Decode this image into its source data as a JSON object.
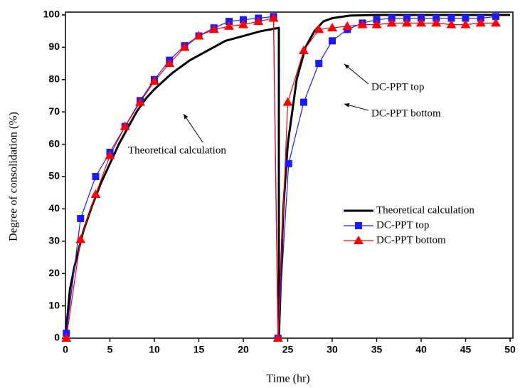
{
  "chart_data": {
    "type": "line",
    "x_label": "Time (hr)",
    "y_label": "Degree of consolidation (%)",
    "xlim": [
      0,
      50
    ],
    "xticks": [
      0,
      5,
      10,
      15,
      20,
      25,
      30,
      35,
      40,
      45,
      50
    ],
    "ylim": [
      0,
      100
    ],
    "yticks": [
      0,
      10,
      20,
      30,
      40,
      50,
      60,
      70,
      80,
      90,
      100
    ],
    "legend": "right",
    "annotations": [
      "Theoretical calculation",
      "DC-PPT top",
      "DC-PPT bottom"
    ],
    "series": [
      {
        "name": "Theoretical calculation",
        "color": "#000000",
        "marker": "none",
        "x": [
          0,
          0.5,
          1,
          2,
          3,
          4,
          5,
          6,
          7,
          8,
          9,
          10,
          12,
          14,
          16,
          18,
          20,
          22,
          24,
          24,
          24.5,
          25,
          26,
          27,
          28,
          29,
          30,
          32,
          35,
          50
        ],
        "values": [
          0,
          15,
          22,
          33,
          41,
          48,
          54,
          60,
          65,
          70,
          74,
          77,
          82,
          86,
          89,
          92,
          93.5,
          95,
          96,
          0,
          40,
          60,
          80,
          90,
          95,
          98,
          99,
          99.8,
          100,
          100
        ]
      },
      {
        "name": "DC-PPT top",
        "color": "#1a1aff",
        "marker": "square",
        "x": [
          0.1,
          1.7,
          3.4,
          5,
          6.7,
          8.4,
          10,
          11.7,
          13.4,
          15,
          16.7,
          18.4,
          20,
          21.7,
          23.4,
          23.9,
          25.1,
          26.8,
          28.5,
          30,
          31.7,
          33.4,
          35,
          36.7,
          38.4,
          40,
          41.7,
          43.4,
          45,
          46.7,
          48.4
        ],
        "values": [
          1.5,
          37,
          50,
          57.5,
          65.5,
          73.5,
          80,
          86,
          90.5,
          93.5,
          96,
          98,
          98.5,
          99,
          99.5,
          0,
          54,
          73,
          85,
          92,
          95.5,
          97.5,
          98.5,
          99,
          99,
          99,
          99,
          99,
          99,
          99,
          99.5
        ]
      },
      {
        "name": "DC-PPT bottom",
        "color": "#ff0000",
        "marker": "triangle",
        "x": [
          0.1,
          1.7,
          3.4,
          5,
          6.7,
          8.4,
          10,
          11.7,
          13.4,
          15,
          16.7,
          18.4,
          20,
          21.7,
          23.4,
          23.9,
          25,
          26.8,
          28.5,
          30,
          31.7,
          33.4,
          35,
          36.7,
          38.4,
          40,
          41.7,
          43.4,
          45,
          46.7,
          48.4
        ],
        "values": [
          0,
          30.5,
          44.5,
          56.5,
          65.5,
          73,
          79.5,
          85,
          90,
          93.5,
          95.5,
          96.5,
          97,
          98,
          99,
          0,
          73,
          89,
          95.5,
          96,
          96.5,
          97,
          97,
          97.5,
          97.5,
          97.5,
          97.5,
          97,
          97,
          97.5,
          97.5
        ]
      }
    ]
  }
}
